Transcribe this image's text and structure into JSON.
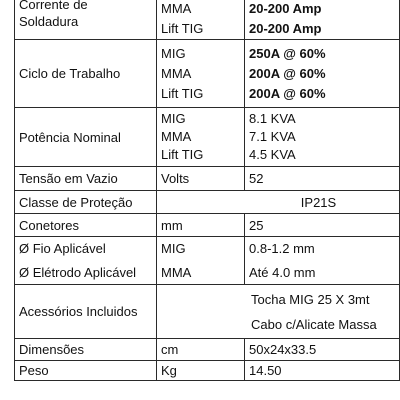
{
  "rows": {
    "current": {
      "param_line1": "Corrente de",
      "param_line2": "Soldadura",
      "units": [
        "MMA",
        "Lift TIG"
      ],
      "values": [
        "20-200 Amp",
        "20-200 Amp"
      ]
    },
    "duty": {
      "param": "Ciclo de Trabalho",
      "units": [
        "MIG",
        "MMA",
        "Lift TIG"
      ],
      "values": [
        "250A @ 60%",
        "200A @ 60%",
        "200A @ 60%"
      ]
    },
    "power": {
      "param": "Potência Nominal",
      "units": [
        "MIG",
        "MMA",
        "Lift TIG"
      ],
      "values": [
        "8.1 KVA",
        "7.1 KVA",
        "4.5 KVA"
      ]
    },
    "ocv": {
      "param": "Tensão em Vazio",
      "unit": "Volts",
      "value": "52"
    },
    "protection": {
      "param": "Classe de Proteção",
      "value": "IP21S"
    },
    "connectors": {
      "param": "Conetores",
      "unit": "mm",
      "value": "25"
    },
    "wire": {
      "param": "Ø Fio Aplicável",
      "unit": "MIG",
      "value": "0.8-1.2 mm"
    },
    "electrode": {
      "param": "Ø Elétrodo Aplicável",
      "unit": "MMA",
      "value": "Até 4.0 mm"
    },
    "accessories": {
      "param": "Acessórios Incluidos",
      "values": [
        "Tocha MIG 25 X 3mt",
        "Cabo c/Alicate Massa"
      ]
    },
    "dimensions": {
      "param": "Dimensões",
      "unit": "cm",
      "value": "50x24x33.5"
    },
    "weight": {
      "param": "Peso",
      "unit": "Kg",
      "value": "14.50"
    }
  }
}
